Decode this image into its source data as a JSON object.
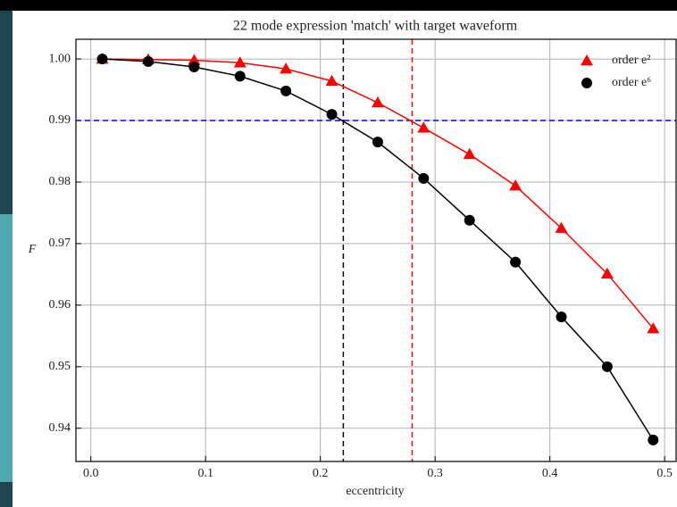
{
  "chart_data": {
    "type": "line",
    "title": "22 mode expression 'match' with target waveform",
    "x_label": "eccentricity",
    "y_label": "F",
    "x": [
      0.01,
      0.05,
      0.09,
      0.13,
      0.17,
      0.21,
      0.25,
      0.29,
      0.33,
      0.37,
      0.41,
      0.45,
      0.49
    ],
    "series": [
      {
        "name": "order e²",
        "color": "#ff0000",
        "marker": "triangle",
        "values": [
          1.0,
          0.9999,
          0.9998,
          0.9994,
          0.9984,
          0.9964,
          0.9929,
          0.9888,
          0.9845,
          0.9794,
          0.9725,
          0.9651,
          0.9562
        ]
      },
      {
        "name": "order e⁶",
        "color": "#000000",
        "marker": "circle",
        "values": [
          1.0,
          0.9996,
          0.9987,
          0.9972,
          0.9948,
          0.991,
          0.9865,
          0.9806,
          0.9738,
          0.967,
          0.9581,
          0.95,
          0.9381
        ]
      }
    ],
    "hlines": [
      {
        "value": 0.99,
        "color": "#0000ff"
      }
    ],
    "vlines": [
      {
        "value": 0.22,
        "color": "#000000"
      },
      {
        "value": 0.28,
        "color": "#ff0000"
      }
    ],
    "xlim": [
      -0.013,
      0.51
    ],
    "ylim": [
      0.9346,
      1.0032
    ],
    "xticks": [
      {
        "value": 0,
        "label": "0.0"
      },
      0.1,
      0.2,
      0.3,
      0.4,
      0.5
    ],
    "yticks": [
      0.94,
      0.95,
      0.96,
      0.97,
      0.98,
      0.99,
      {
        "value": 1,
        "label": "1.00"
      }
    ],
    "grid": true,
    "legend": "upper right"
  }
}
